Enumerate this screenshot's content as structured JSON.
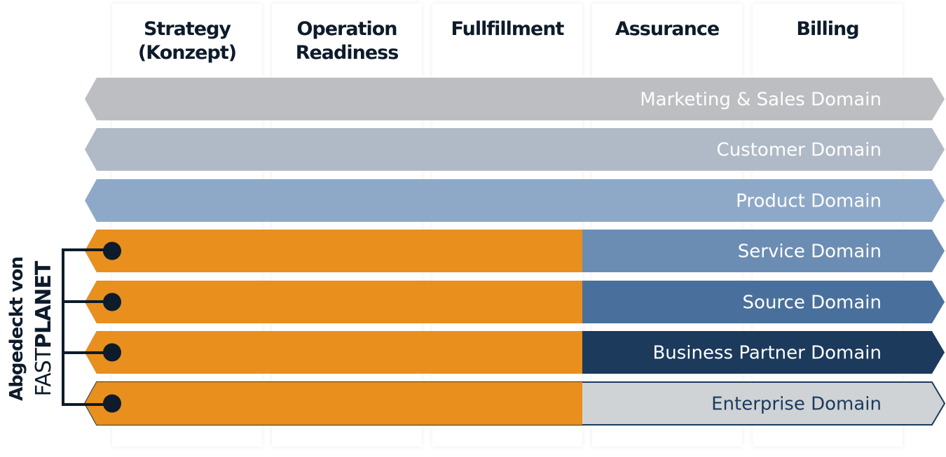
{
  "columns": [
    {
      "lines": [
        "Strategy",
        "(Konzept)"
      ]
    },
    {
      "lines": [
        "Operation",
        "Readiness"
      ]
    },
    {
      "lines": [
        "Fullfillment"
      ]
    },
    {
      "lines": [
        "Assurance"
      ]
    },
    {
      "lines": [
        "Billing"
      ]
    }
  ],
  "rows": [
    {
      "label": "Marketing & Sales Domain"
    },
    {
      "label": "Customer Domain"
    },
    {
      "label": "Product Domain"
    },
    {
      "label": "Service Domain"
    },
    {
      "label": "Source Domain"
    },
    {
      "label": "Business Partner Domain"
    },
    {
      "label": "Enterprise Domain"
    }
  ],
  "side_label": {
    "line1": "Abgedeckt von",
    "brand_light": "FAST",
    "brand_bold": "PLANET"
  }
}
